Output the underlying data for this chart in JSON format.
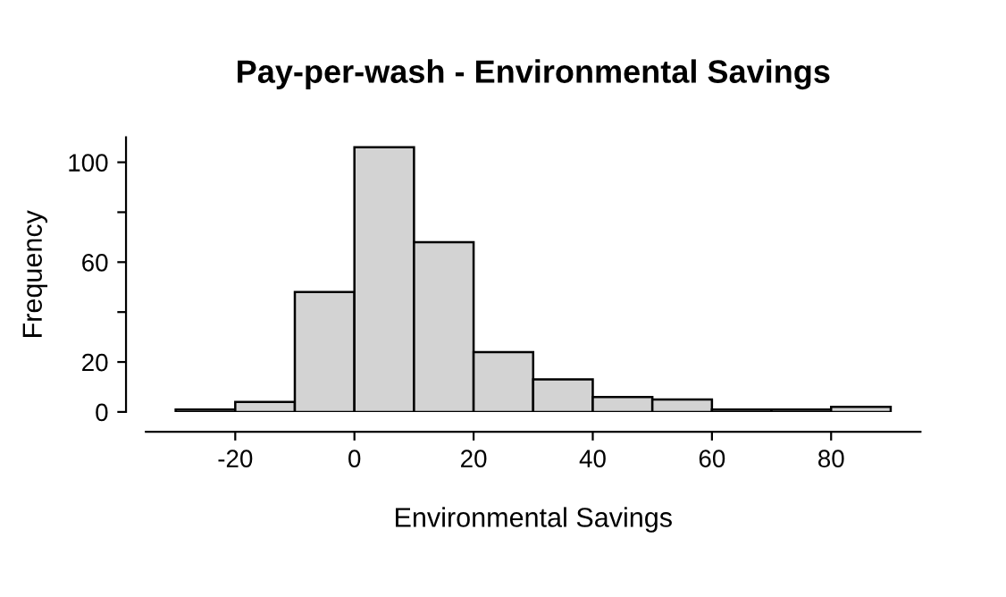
{
  "chart_data": {
    "type": "histogram",
    "title": "Pay-per-wash - Environmental Savings",
    "xlabel": "Environmental Savings",
    "ylabel": "Frequency",
    "bins": [
      -30,
      -20,
      -10,
      0,
      10,
      20,
      30,
      40,
      50,
      60,
      70,
      80,
      90
    ],
    "values": [
      1,
      4,
      48,
      106,
      68,
      24,
      13,
      6,
      5,
      1,
      1,
      2
    ],
    "color": "#d3d3d3",
    "xlim": [
      -35,
      95
    ],
    "ylim": [
      0,
      110
    ],
    "xticks": [
      -20,
      0,
      20,
      40,
      60,
      80
    ],
    "yticks": [
      0,
      20,
      {
        "value": 40,
        "label": null
      },
      60,
      {
        "value": 80,
        "label": null
      },
      100
    ],
    "grid": false,
    "legend": false
  }
}
